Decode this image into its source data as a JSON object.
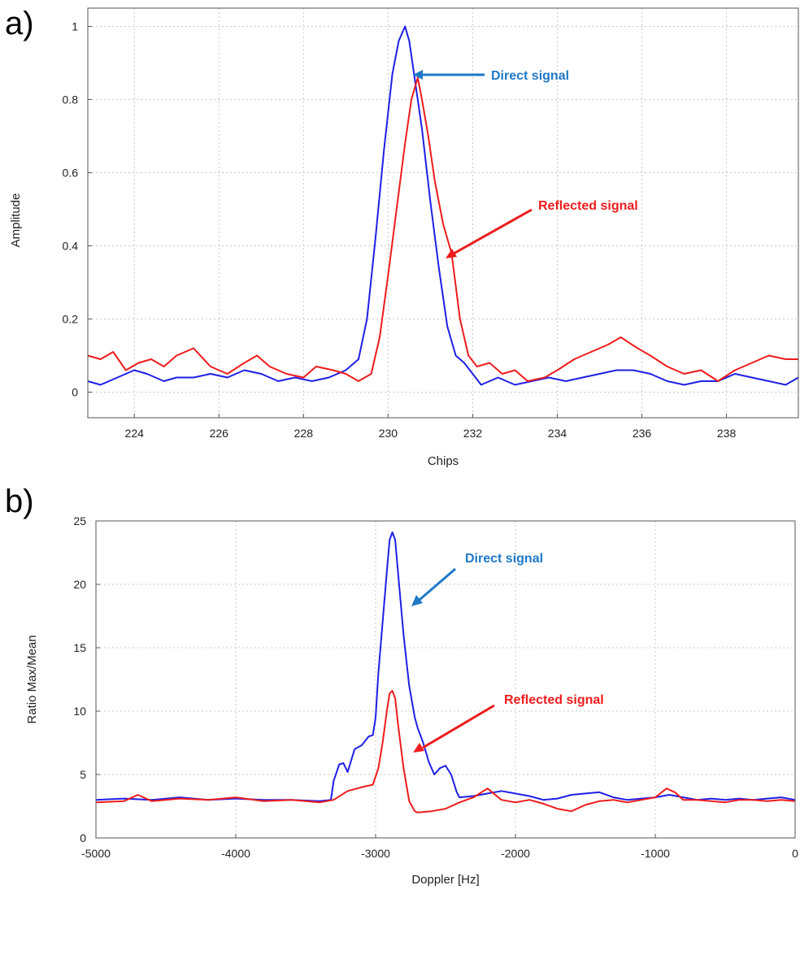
{
  "chart_data": [
    {
      "panel": "a)",
      "type": "line",
      "xlabel": "Chips",
      "ylabel": "Amplitude",
      "xlim": [
        222.9,
        239.7
      ],
      "ylim": [
        -0.07,
        1.05
      ],
      "xticks": [
        224,
        226,
        228,
        230,
        232,
        234,
        236,
        238
      ],
      "yticks": [
        0,
        0.2,
        0.4,
        0.6,
        0.8,
        1
      ],
      "ytick_labels": [
        "0",
        "0.2",
        "0.4",
        "0.6",
        "0.8",
        "1"
      ],
      "grid": true,
      "series": [
        {
          "name": "Direct signal",
          "color": "#1f1fe6",
          "x": [
            222.9,
            223.2,
            223.6,
            224.0,
            224.3,
            224.7,
            225.0,
            225.4,
            225.8,
            226.2,
            226.6,
            227.0,
            227.4,
            227.8,
            228.2,
            228.6,
            229.0,
            229.3,
            229.5,
            229.7,
            229.9,
            230.1,
            230.25,
            230.4,
            230.5,
            230.6,
            230.8,
            231.0,
            231.2,
            231.4,
            231.6,
            231.8,
            232.0,
            232.2,
            232.4,
            232.6,
            233.0,
            233.4,
            233.8,
            234.2,
            234.6,
            235.0,
            235.4,
            235.8,
            236.2,
            236.6,
            237.0,
            237.4,
            237.8,
            238.2,
            238.6,
            239.0,
            239.4,
            239.7
          ],
          "y": [
            0.03,
            0.02,
            0.04,
            0.06,
            0.05,
            0.03,
            0.04,
            0.04,
            0.05,
            0.04,
            0.06,
            0.05,
            0.03,
            0.04,
            0.03,
            0.04,
            0.06,
            0.09,
            0.2,
            0.42,
            0.66,
            0.87,
            0.96,
            1.0,
            0.96,
            0.88,
            0.72,
            0.52,
            0.34,
            0.18,
            0.1,
            0.08,
            0.05,
            0.02,
            0.03,
            0.04,
            0.02,
            0.03,
            0.04,
            0.03,
            0.04,
            0.05,
            0.06,
            0.06,
            0.05,
            0.03,
            0.02,
            0.03,
            0.03,
            0.05,
            0.04,
            0.03,
            0.02,
            0.04
          ]
        },
        {
          "name": "Reflected signal",
          "color": "#ee1c1c",
          "x": [
            222.9,
            223.2,
            223.5,
            223.8,
            224.1,
            224.4,
            224.7,
            225.0,
            225.4,
            225.8,
            226.2,
            226.6,
            226.9,
            227.2,
            227.6,
            228.0,
            228.3,
            228.7,
            229.0,
            229.3,
            229.6,
            229.8,
            230.0,
            230.2,
            230.4,
            230.55,
            230.7,
            230.8,
            230.95,
            231.1,
            231.3,
            231.5,
            231.7,
            231.9,
            232.1,
            232.4,
            232.7,
            233.0,
            233.3,
            233.7,
            234.0,
            234.4,
            234.8,
            235.2,
            235.5,
            235.9,
            236.2,
            236.6,
            237.0,
            237.4,
            237.8,
            238.2,
            238.6,
            239.0,
            239.4,
            239.7
          ],
          "y": [
            0.1,
            0.09,
            0.11,
            0.06,
            0.08,
            0.09,
            0.07,
            0.1,
            0.12,
            0.07,
            0.05,
            0.08,
            0.1,
            0.07,
            0.05,
            0.04,
            0.07,
            0.06,
            0.05,
            0.03,
            0.05,
            0.15,
            0.32,
            0.5,
            0.68,
            0.8,
            0.86,
            0.8,
            0.7,
            0.58,
            0.46,
            0.38,
            0.2,
            0.1,
            0.07,
            0.08,
            0.05,
            0.06,
            0.03,
            0.04,
            0.06,
            0.09,
            0.11,
            0.13,
            0.15,
            0.12,
            0.1,
            0.07,
            0.05,
            0.06,
            0.03,
            0.06,
            0.08,
            0.1,
            0.09,
            0.09
          ]
        }
      ],
      "annotations": [
        {
          "text": "Direct signal",
          "color": "#1f78c8"
        },
        {
          "text": "Reflected signal",
          "color": "#ee1c1c"
        }
      ]
    },
    {
      "panel": "b)",
      "type": "line",
      "xlabel": "Doppler [Hz]",
      "ylabel": "Ratio Max/Mean",
      "xlim": [
        -5000,
        0
      ],
      "ylim": [
        0,
        25
      ],
      "xticks": [
        -5000,
        -4000,
        -3000,
        -2000,
        -1000,
        0
      ],
      "yticks": [
        0,
        5,
        10,
        15,
        20,
        25
      ],
      "grid": true,
      "series": [
        {
          "name": "Direct signal",
          "color": "#1f1fe6",
          "x": [
            -5000,
            -4800,
            -4600,
            -4400,
            -4200,
            -4000,
            -3800,
            -3600,
            -3400,
            -3320,
            -3300,
            -3260,
            -3230,
            -3200,
            -3150,
            -3100,
            -3050,
            -3020,
            -3000,
            -2980,
            -2950,
            -2920,
            -2900,
            -2880,
            -2860,
            -2840,
            -2800,
            -2760,
            -2720,
            -2700,
            -2660,
            -2620,
            -2580,
            -2540,
            -2500,
            -2460,
            -2420,
            -2400,
            -2300,
            -2200,
            -2100,
            -2000,
            -1900,
            -1800,
            -1700,
            -1600,
            -1500,
            -1400,
            -1300,
            -1200,
            -1100,
            -1000,
            -900,
            -800,
            -700,
            -600,
            -500,
            -400,
            -300,
            -200,
            -100,
            0
          ],
          "y": [
            3.0,
            3.1,
            3.0,
            3.2,
            3.0,
            3.1,
            3.0,
            3.0,
            2.9,
            3.0,
            4.5,
            5.8,
            5.9,
            5.2,
            7.0,
            7.3,
            8.0,
            8.1,
            9.5,
            13.0,
            17.0,
            21.0,
            23.5,
            24.1,
            23.5,
            21.0,
            16.0,
            12.0,
            9.5,
            8.7,
            7.5,
            6.0,
            5.0,
            5.5,
            5.7,
            5.0,
            3.6,
            3.2,
            3.3,
            3.5,
            3.7,
            3.5,
            3.3,
            3.0,
            3.1,
            3.4,
            3.5,
            3.6,
            3.2,
            3.0,
            3.1,
            3.2,
            3.4,
            3.2,
            3.0,
            3.1,
            3.0,
            3.1,
            3.0,
            3.1,
            3.2,
            3.0
          ]
        },
        {
          "name": "Reflected signal",
          "color": "#ee1c1c",
          "x": [
            -5000,
            -4800,
            -4700,
            -4600,
            -4400,
            -4200,
            -4000,
            -3800,
            -3600,
            -3400,
            -3300,
            -3200,
            -3100,
            -3020,
            -2980,
            -2950,
            -2920,
            -2900,
            -2880,
            -2860,
            -2840,
            -2800,
            -2760,
            -2720,
            -2700,
            -2600,
            -2500,
            -2400,
            -2300,
            -2200,
            -2100,
            -2000,
            -1900,
            -1800,
            -1700,
            -1600,
            -1500,
            -1400,
            -1300,
            -1200,
            -1100,
            -1000,
            -920,
            -860,
            -800,
            -700,
            -600,
            -500,
            -400,
            -300,
            -200,
            -100,
            0
          ],
          "y": [
            2.8,
            2.9,
            3.4,
            2.9,
            3.1,
            3.0,
            3.2,
            2.9,
            3.0,
            2.8,
            3.0,
            3.7,
            4.0,
            4.2,
            5.5,
            7.5,
            10.0,
            11.4,
            11.6,
            11.0,
            9.0,
            5.5,
            2.9,
            2.1,
            2.0,
            2.1,
            2.3,
            2.8,
            3.2,
            3.9,
            3.0,
            2.8,
            3.0,
            2.7,
            2.3,
            2.1,
            2.6,
            2.9,
            3.0,
            2.8,
            3.0,
            3.2,
            3.9,
            3.6,
            3.0,
            3.0,
            2.9,
            2.8,
            3.0,
            3.0,
            2.9,
            3.0,
            2.9
          ]
        }
      ],
      "annotations": [
        {
          "text": "Direct signal",
          "color": "#1f78c8"
        },
        {
          "text": "Reflected signal",
          "color": "#ee1c1c"
        }
      ]
    }
  ]
}
